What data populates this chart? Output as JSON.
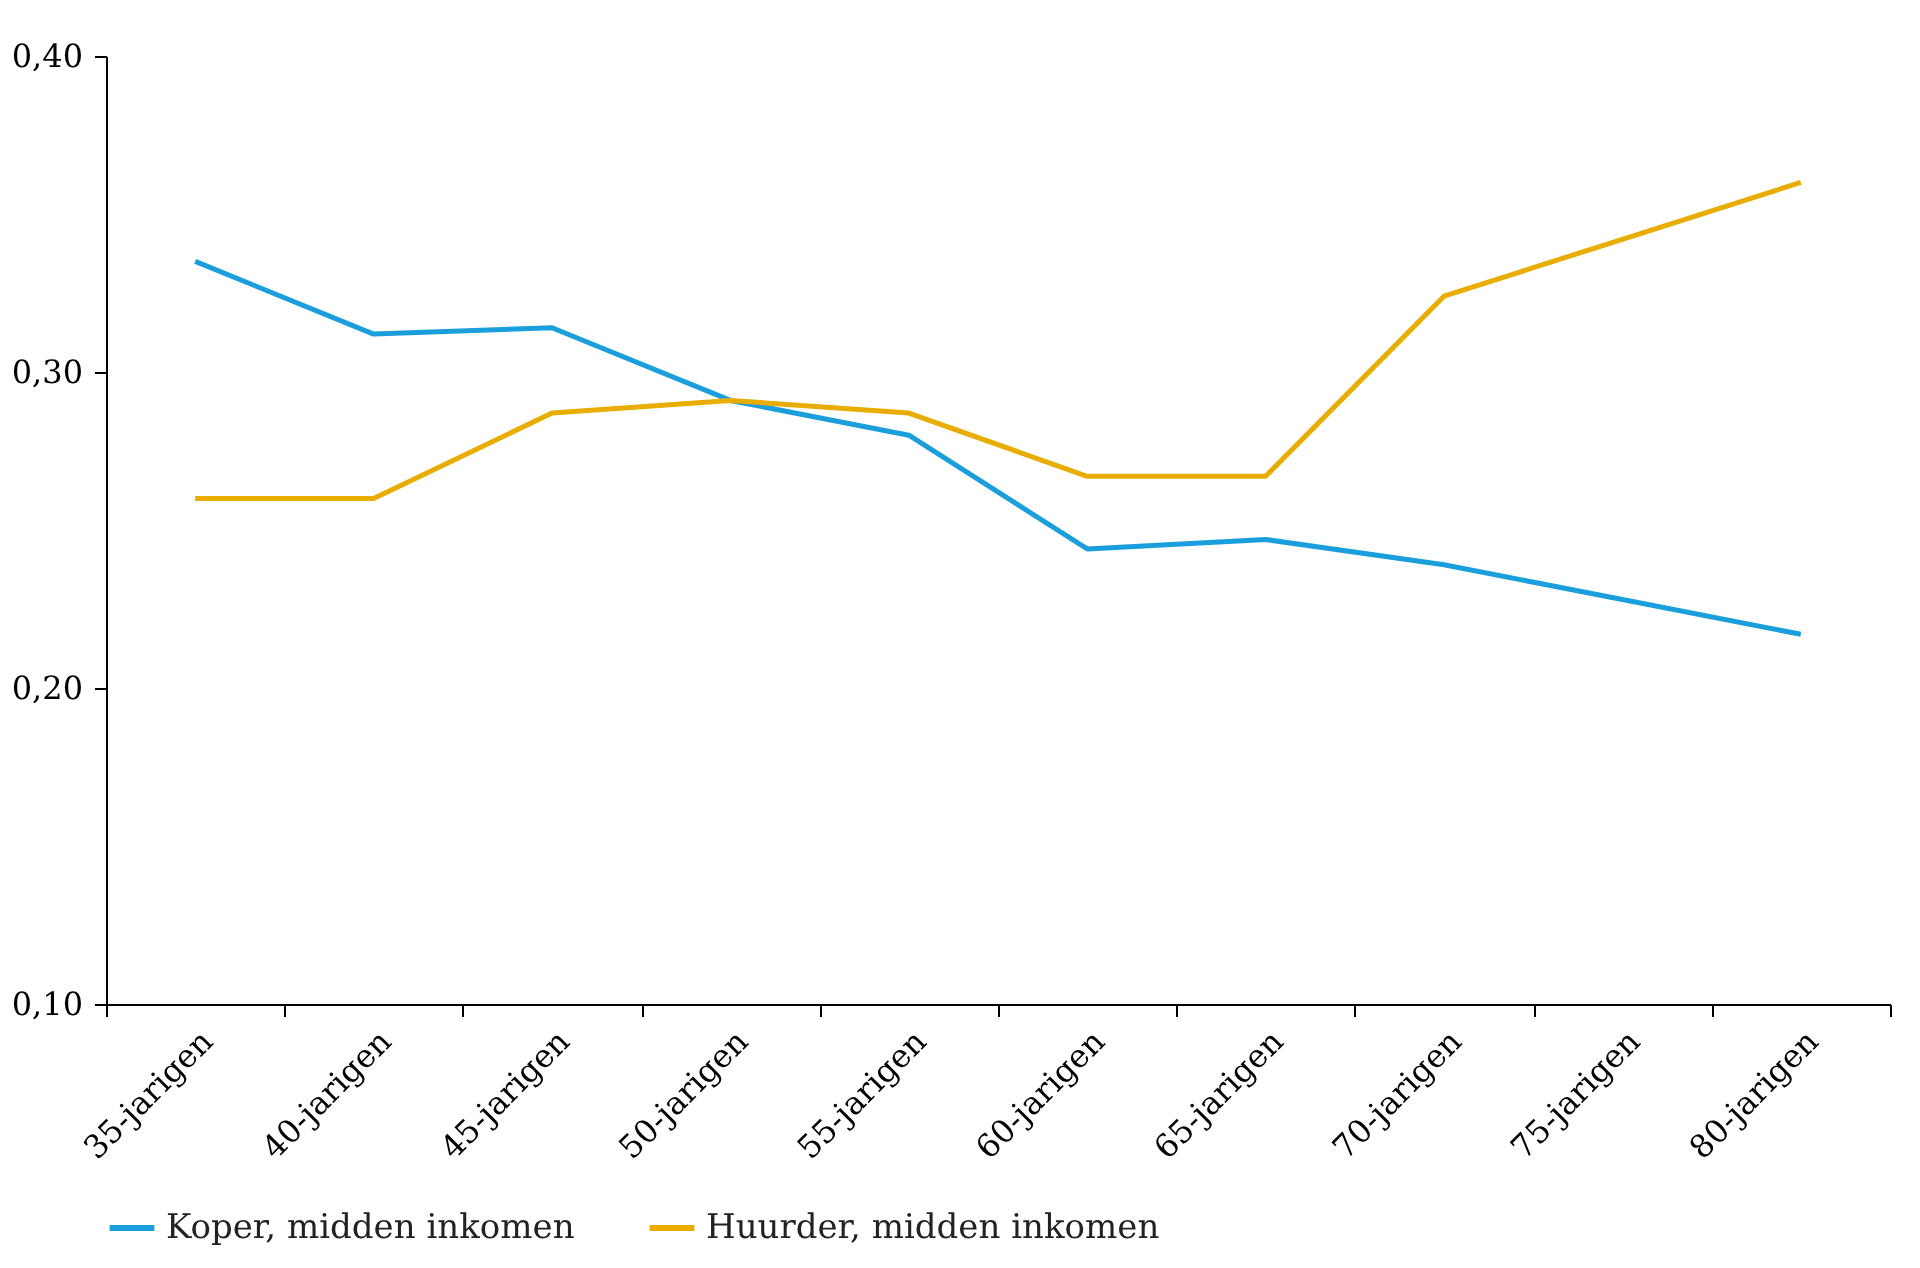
{
  "chart_data": {
    "type": "line",
    "categories": [
      "35-jarigen",
      "40-jarigen",
      "45-jarigen",
      "50-jarigen",
      "55-jarigen",
      "60-jarigen",
      "65-jarigen",
      "70-jarigen",
      "75-jarigen",
      "80-jarigen"
    ],
    "series": [
      {
        "name": "Koper, midden inkomen",
        "color": "#1a9fdc",
        "values": [
          0.335,
          0.312,
          0.314,
          0.291,
          0.28,
          0.244,
          0.247,
          0.239,
          0.228,
          0.217
        ]
      },
      {
        "name": "Huurder, midden inkomen",
        "color": "#e8ad00",
        "values": [
          0.26,
          0.26,
          0.287,
          0.291,
          0.287,
          0.267,
          0.267,
          0.324,
          0.342,
          0.36
        ]
      }
    ],
    "ylim": [
      0.1,
      0.4
    ],
    "yticks": [
      {
        "value": 0.1,
        "label": "0,10"
      },
      {
        "value": 0.2,
        "label": "0,20"
      },
      {
        "value": 0.3,
        "label": "0,30"
      },
      {
        "value": 0.4,
        "label": "0,40"
      }
    ],
    "grid": false,
    "legend": "bottom",
    "marker": "none",
    "line_style": "solid"
  }
}
